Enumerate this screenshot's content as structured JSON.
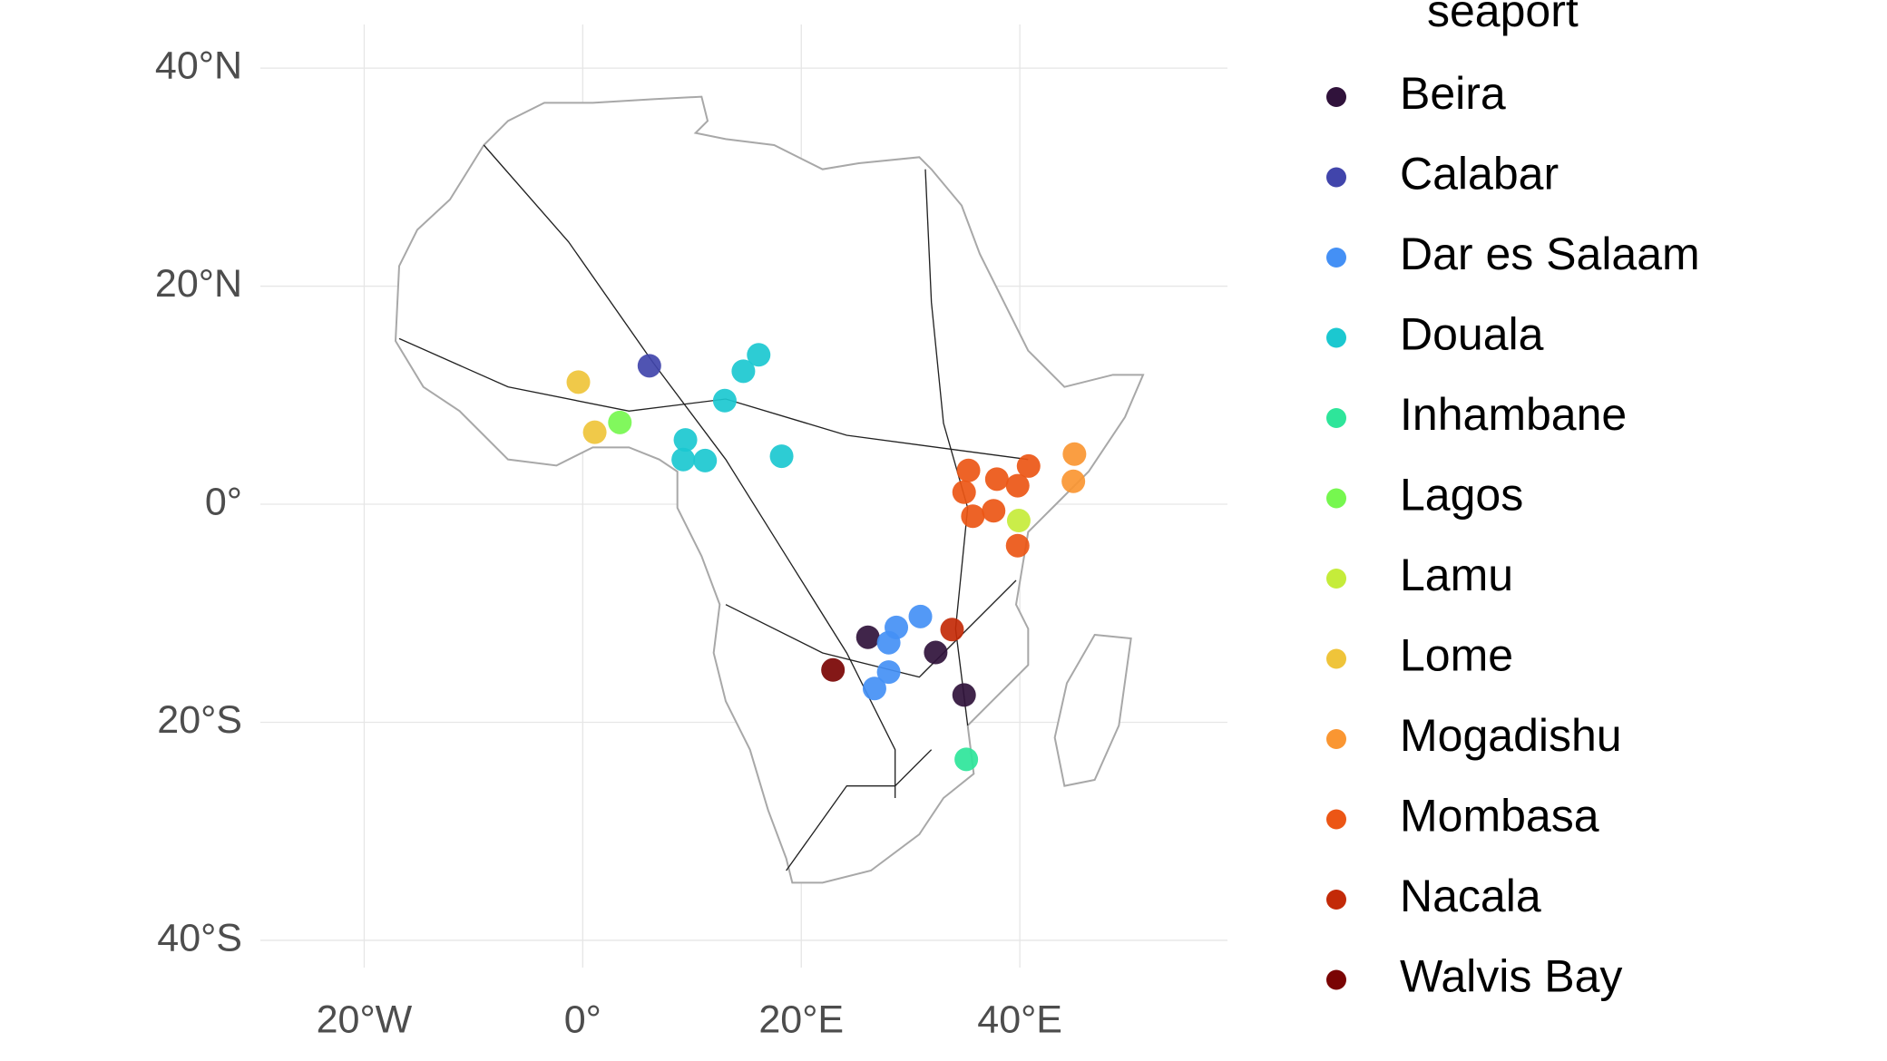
{
  "chart_data": {
    "type": "scatter",
    "legend_title": "seaport",
    "legend": "right",
    "grid": true,
    "xlim": [
      -29.5,
      59
    ],
    "ylim": [
      -42.5,
      44
    ],
    "xticks": [
      {
        "value": -20,
        "label": "20°W"
      },
      {
        "value": 0,
        "label": "0°"
      },
      {
        "value": 20,
        "label": "20°E"
      },
      {
        "value": 40,
        "label": "40°E"
      }
    ],
    "yticks": [
      {
        "value": 40,
        "label": "40°N"
      },
      {
        "value": 20,
        "label": "20°N"
      },
      {
        "value": 0,
        "label": "0°"
      },
      {
        "value": -20,
        "label": "20°S"
      },
      {
        "value": -40,
        "label": "40°S"
      }
    ],
    "series": [
      {
        "name": "Beira",
        "color": "#30123b",
        "x": [
          26.1,
          32.3,
          34.9
        ],
        "y": [
          -12.2,
          -13.6,
          -17.5
        ]
      },
      {
        "name": "Calabar",
        "color": "#4145ab",
        "x": [
          6.1
        ],
        "y": [
          12.7
        ]
      },
      {
        "name": "Dar es Salaam",
        "color": "#4490f5",
        "x": [
          28,
          28.7,
          30.9,
          28,
          26.7
        ],
        "y": [
          -12.7,
          -11.3,
          -10.3,
          -15.4,
          -16.9
        ]
      },
      {
        "name": "Douala",
        "color": "#1bc8d0",
        "x": [
          16.1,
          14.7,
          13,
          9.4,
          9.2,
          11.2,
          18.2
        ],
        "y": [
          13.7,
          12.2,
          9.5,
          5.9,
          4.1,
          4.0,
          4.4
        ]
      },
      {
        "name": "Inhambane",
        "color": "#2ee59a",
        "x": [
          35.1
        ],
        "y": [
          -23.4
        ]
      },
      {
        "name": "Lagos",
        "color": "#76f74f",
        "x": [
          3.4
        ],
        "y": [
          7.5
        ]
      },
      {
        "name": "Lamu",
        "color": "#c5ec3a",
        "x": [
          39.9
        ],
        "y": [
          -1.5
        ]
      },
      {
        "name": "Lome",
        "color": "#efc43a",
        "x": [
          -0.4,
          1.1
        ],
        "y": [
          11.2,
          6.6
        ]
      },
      {
        "name": "Mogadishu",
        "color": "#fa9632",
        "x": [
          45,
          44.9
        ],
        "y": [
          4.6,
          2.1
        ]
      },
      {
        "name": "Mombasa",
        "color": "#ec5615",
        "x": [
          35.3,
          37.9,
          40.8,
          39.8,
          34.9,
          35.7,
          37.6,
          39.8
        ],
        "y": [
          3.1,
          2.3,
          3.5,
          1.7,
          1.1,
          -1.1,
          -0.6,
          -3.8
        ]
      },
      {
        "name": "Nacala",
        "color": "#c32a08",
        "x": [
          33.8
        ],
        "y": [
          -11.5
        ]
      },
      {
        "name": "Walvis Bay",
        "color": "#7a0403",
        "x": [
          22.9
        ],
        "y": [
          -15.2
        ]
      }
    ]
  }
}
